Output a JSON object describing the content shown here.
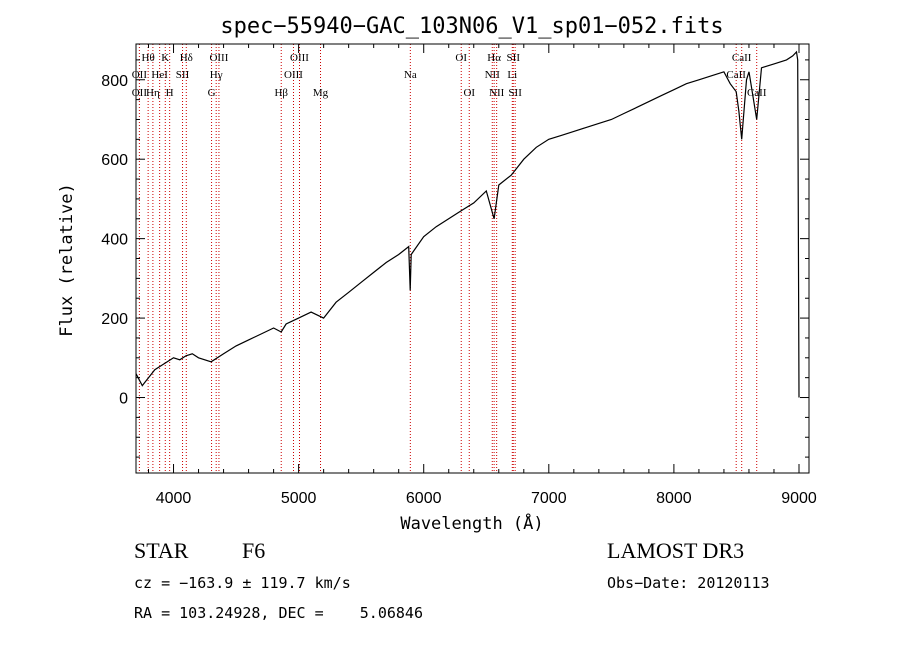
{
  "chart_data": {
    "type": "line",
    "title": "spec−55940−GAC_103N06_V1_sp01−052.fits",
    "xlabel": "Wavelength (Å)",
    "ylabel": "Flux (relative)",
    "xlim": [
      3700,
      9080
    ],
    "ylim": [
      -190,
      890
    ],
    "xticks": [
      4000,
      5000,
      6000,
      7000,
      8000,
      9000
    ],
    "xtick_labels": [
      "4000",
      "5000",
      "6000",
      "7000",
      "8000",
      "9000"
    ],
    "yticks": [
      0,
      200,
      400,
      600,
      800
    ],
    "ytick_labels": [
      "0",
      "200",
      "400",
      "600",
      "800"
    ],
    "grid": false,
    "series": [
      {
        "name": "flux",
        "color": "#000000",
        "x": [
          3700,
          3750,
          3800,
          3850,
          3900,
          3950,
          4000,
          4050,
          4100,
          4150,
          4200,
          4300,
          4400,
          4500,
          4600,
          4700,
          4800,
          4861,
          4900,
          5000,
          5100,
          5200,
          5300,
          5400,
          5500,
          5600,
          5700,
          5800,
          5880,
          5892,
          5900,
          6000,
          6100,
          6200,
          6300,
          6400,
          6500,
          6563,
          6600,
          6700,
          6800,
          6900,
          7000,
          7100,
          7200,
          7300,
          7400,
          7500,
          7600,
          7700,
          7800,
          7900,
          8000,
          8100,
          8200,
          8300,
          8400,
          8450,
          8498,
          8520,
          8542,
          8580,
          8600,
          8662,
          8700,
          8800,
          8900,
          8950,
          8980,
          8990,
          9000
        ],
        "y": [
          60,
          30,
          50,
          70,
          80,
          90,
          100,
          95,
          105,
          110,
          100,
          90,
          110,
          130,
          145,
          160,
          175,
          165,
          185,
          200,
          215,
          200,
          240,
          265,
          290,
          315,
          340,
          360,
          380,
          270,
          360,
          405,
          430,
          450,
          470,
          490,
          520,
          450,
          535,
          560,
          600,
          630,
          650,
          660,
          670,
          680,
          690,
          700,
          715,
          730,
          745,
          760,
          775,
          790,
          800,
          810,
          820,
          790,
          770,
          720,
          650,
          800,
          820,
          700,
          830,
          840,
          850,
          860,
          870,
          850,
          0
        ]
      }
    ],
    "line_color": "#cc0000",
    "spectral_lines": [
      {
        "label": "Hθ",
        "x": 3797,
        "row": 1
      },
      {
        "label": "OII",
        "x": 3727,
        "row": 2
      },
      {
        "label": "OII",
        "x": 3727,
        "row": 3
      },
      {
        "label": "HeI",
        "x": 3889,
        "row": 2
      },
      {
        "label": "Hη",
        "x": 3835,
        "row": 3
      },
      {
        "label": "K",
        "x": 3934,
        "row": 1
      },
      {
        "label": "H",
        "x": 3969,
        "row": 3
      },
      {
        "label": "Hδ",
        "x": 4102,
        "row": 1
      },
      {
        "label": "SII",
        "x": 4072,
        "row": 2
      },
      {
        "label": "OIII",
        "x": 4363,
        "row": 1
      },
      {
        "label": "Hγ",
        "x": 4341,
        "row": 2
      },
      {
        "label": "G",
        "x": 4304,
        "row": 3
      },
      {
        "label": "Hβ",
        "x": 4861,
        "row": 3
      },
      {
        "label": "OIII",
        "x": 5007,
        "row": 1
      },
      {
        "label": "OIII",
        "x": 4959,
        "row": 2
      },
      {
        "label": "Mg",
        "x": 5175,
        "row": 3
      },
      {
        "label": "Na",
        "x": 5893,
        "row": 2
      },
      {
        "label": "OI",
        "x": 6300,
        "row": 1
      },
      {
        "label": "OI",
        "x": 6364,
        "row": 3
      },
      {
        "label": "Hα",
        "x": 6563,
        "row": 1
      },
      {
        "label": "NII",
        "x": 6548,
        "row": 2
      },
      {
        "label": "NII",
        "x": 6583,
        "row": 3
      },
      {
        "label": "SII",
        "x": 6716,
        "row": 1
      },
      {
        "label": "Li",
        "x": 6708,
        "row": 2
      },
      {
        "label": "SII",
        "x": 6731,
        "row": 3
      },
      {
        "label": "CaII",
        "x": 8542,
        "row": 1
      },
      {
        "label": "CaII",
        "x": 8498,
        "row": 2
      },
      {
        "label": "CaII",
        "x": 8662,
        "row": 3
      }
    ]
  },
  "info": {
    "object_class": "STAR",
    "subclass": "F6",
    "survey": "LAMOST DR3",
    "cz_line": "cz = −163.9 ± 119.7 km/s",
    "obs_date_line": "Obs−Date: 20120113",
    "coords_line": "RA = 103.24928, DEC =    5.06846"
  }
}
